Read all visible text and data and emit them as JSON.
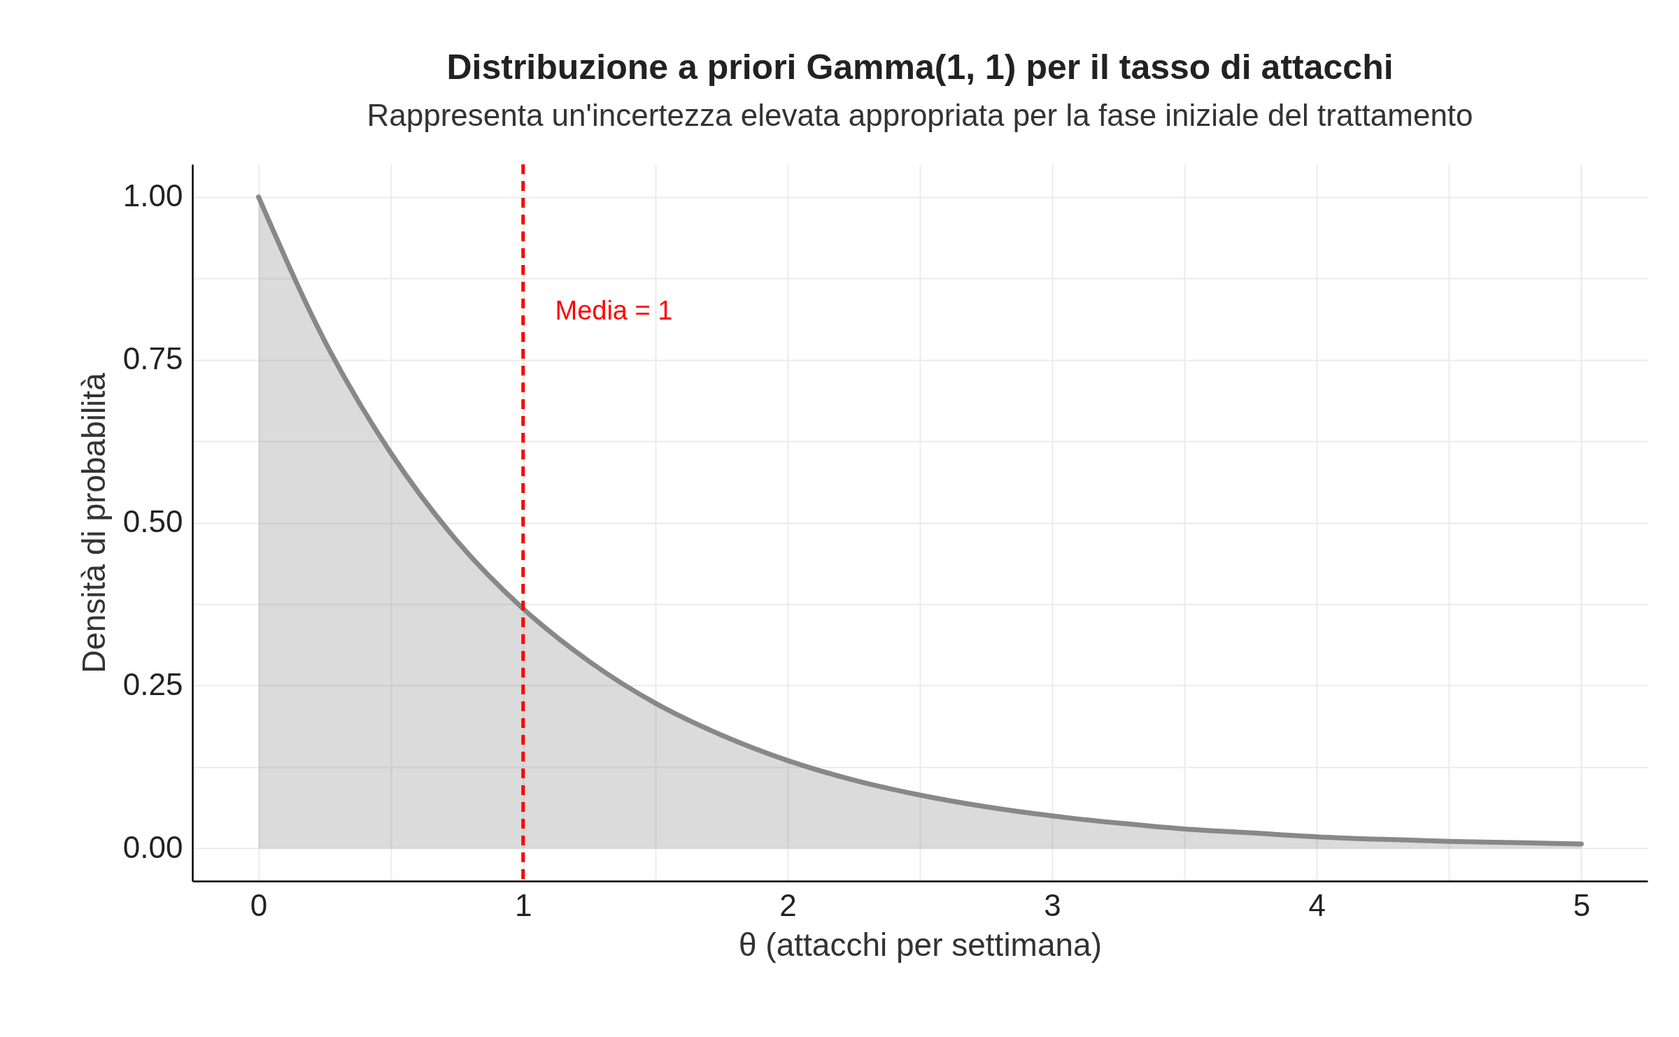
{
  "chart_data": {
    "type": "area",
    "title": "Distribuzione a priori Gamma(1, 1) per il tasso di attacchi",
    "subtitle": "Rappresenta un'incertezza elevata appropriata per la fase iniziale del trattamento",
    "xlabel": "θ (attacchi per settimana)",
    "ylabel": "Densità di probabilità",
    "x": [
      0,
      0.25,
      0.5,
      0.75,
      1,
      1.25,
      1.5,
      1.75,
      2,
      2.25,
      2.5,
      2.75,
      3,
      3.25,
      3.5,
      3.75,
      4,
      4.25,
      4.5,
      4.75,
      5
    ],
    "series": [
      {
        "color": "#888888",
        "values": [
          1.0,
          0.779,
          0.607,
          0.472,
          0.368,
          0.287,
          0.223,
          0.174,
          0.135,
          0.105,
          0.082,
          0.064,
          0.05,
          0.039,
          0.03,
          0.024,
          0.018,
          0.014,
          0.011,
          0.009,
          0.007
        ]
      }
    ],
    "xlim": [
      -0.25,
      5.25
    ],
    "ylim": [
      -0.05,
      1.05
    ],
    "xticks": [
      0,
      {
        "value": 0.5,
        "label": null
      },
      1,
      {
        "value": 1.5,
        "label": null
      },
      2,
      {
        "value": 2.5,
        "label": null
      },
      3,
      {
        "value": 3.5,
        "label": null
      },
      4,
      {
        "value": 4.5,
        "label": null
      },
      5
    ],
    "yticks": [
      {
        "value": 0,
        "label": "0.00"
      },
      {
        "value": 0.125,
        "label": null
      },
      {
        "value": 0.25,
        "label": "0.25"
      },
      {
        "value": 0.375,
        "label": null
      },
      {
        "value": 0.5,
        "label": "0.50"
      },
      {
        "value": 0.625,
        "label": null
      },
      {
        "value": 0.75,
        "label": "0.75"
      },
      {
        "value": 0.875,
        "label": null
      },
      {
        "value": 1,
        "label": "1.00"
      }
    ],
    "ref_lines": [
      {
        "axis": "x",
        "value": 1,
        "label": "Media = 1",
        "color": "#ff0000",
        "line_style": "dashed"
      }
    ],
    "grid": true
  }
}
